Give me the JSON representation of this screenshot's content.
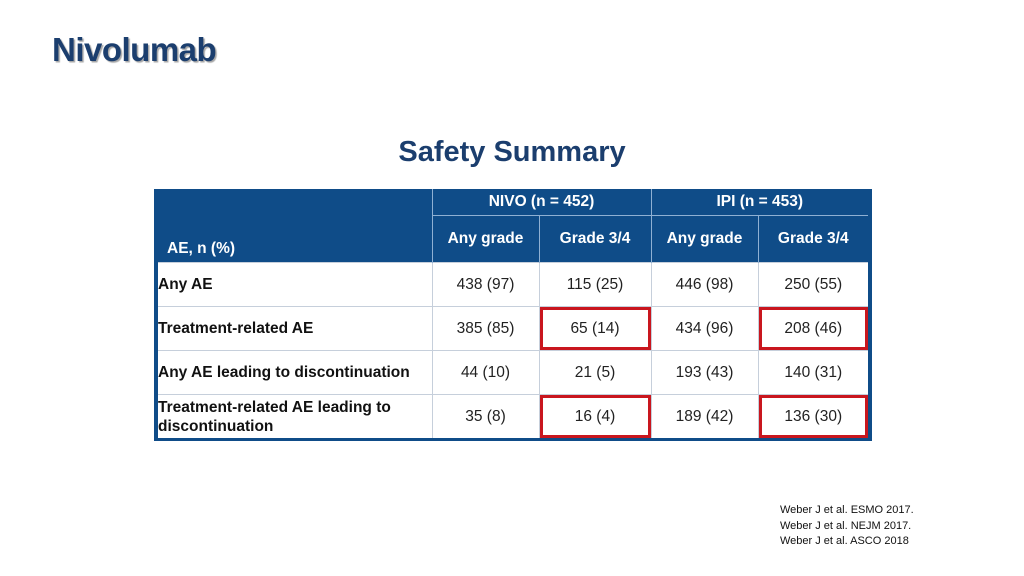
{
  "slide_title": "Nivolumab",
  "table_title": "Safety Summary",
  "table": {
    "row_header": "AE, n (%)",
    "groups": [
      "NIVO (n = 452)",
      "IPI (n = 453)"
    ],
    "subheaders": [
      "Any grade",
      "Grade 3/4",
      "Any grade",
      "Grade 3/4"
    ],
    "rows": [
      {
        "label": "Any AE",
        "values": [
          "438 (97)",
          "115 (25)",
          "446 (98)",
          "250 (55)"
        ]
      },
      {
        "label": "Treatment-related AE",
        "values": [
          "385 (85)",
          "65 (14)",
          "434 (96)",
          "208 (46)"
        ]
      },
      {
        "label": "Any AE leading to discontinuation",
        "values": [
          "44 (10)",
          "21 (5)",
          "193 (43)",
          "140 (31)"
        ]
      },
      {
        "label": "Treatment-related AE leading to discontinuation",
        "values": [
          "35 (8)",
          "16 (4)",
          "189 (42)",
          "136 (30)"
        ]
      }
    ],
    "highlight_color": "#c9161e",
    "header_color": "#0f4c88"
  },
  "references": [
    "Weber J et al. ESMO 2017.",
    "Weber J et al. NEJM 2017.",
    "Weber J et al. ASCO 2018"
  ]
}
